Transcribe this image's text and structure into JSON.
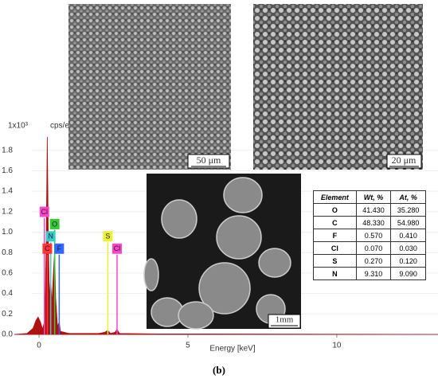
{
  "chart_data": {
    "type": "area",
    "y_unit_label": "1x10³",
    "y_label": "cps/eV",
    "x_label": "Energy [keV]",
    "xlim": [
      -0.83,
      13.4
    ],
    "xticks": [
      0,
      5,
      10
    ],
    "ylim": [
      0,
      1.93
    ],
    "yticks": [
      {
        "value": 0,
        "label": "0.0"
      },
      {
        "value": 0.2,
        "label": "0.2"
      },
      {
        "value": 0.4,
        "label": "0.4"
      },
      {
        "value": 0.6,
        "label": "0.6"
      },
      {
        "value": 0.8,
        "label": "0.8"
      },
      {
        "value": 1,
        "label": "1.0"
      },
      {
        "value": 1.2,
        "label": "1.2"
      },
      {
        "value": 1.4,
        "label": "1.4"
      },
      {
        "value": 1.6,
        "label": "1.6"
      },
      {
        "value": 1.8,
        "label": "1.8"
      }
    ],
    "grid": true,
    "series": [
      {
        "color": "#b01010",
        "x": [
          -0.83,
          -0.4,
          -0.2,
          -0.1,
          -0.03,
          0.05,
          0.12,
          0.2,
          0.24,
          0.277,
          0.31,
          0.35,
          0.392,
          0.43,
          0.5,
          0.525,
          0.56,
          0.62,
          0.677,
          0.72,
          1.0,
          2.0,
          2.2,
          2.31,
          2.4,
          2.55,
          2.62,
          2.7,
          4,
          13.4
        ],
        "values": [
          0,
          0.01,
          0.06,
          0.14,
          0.17,
          0.12,
          0.05,
          0.15,
          0.9,
          1.93,
          1.0,
          0.35,
          0.55,
          0.3,
          0.7,
          0.8,
          0.35,
          0.08,
          0.12,
          0.03,
          0.01,
          0.01,
          0.02,
          0.04,
          0.01,
          0.02,
          0.05,
          0.01,
          0.005,
          0
        ]
      }
    ],
    "markers": [
      {
        "label": "Cl",
        "energy": 0.18,
        "height": 1.14,
        "color": "#ff44cc"
      },
      {
        "label": "O",
        "energy": 0.525,
        "height": 1.02,
        "color": "#33cc33"
      },
      {
        "label": "N",
        "energy": 0.392,
        "height": 0.9,
        "color": "#33cccc"
      },
      {
        "label": "C",
        "energy": 0.277,
        "height": 0.78,
        "color": "#ff3333"
      },
      {
        "label": "F",
        "energy": 0.677,
        "height": 0.78,
        "color": "#3366ff"
      },
      {
        "label": "S",
        "energy": 2.31,
        "height": 0.9,
        "color": "#eeee33"
      },
      {
        "label": "Cl",
        "energy": 2.62,
        "height": 0.78,
        "color": "#ff44cc"
      }
    ]
  },
  "images": {
    "top_left_scale": "50 μm",
    "top_right_scale": "20 μm",
    "bottom_scale": "1mm"
  },
  "table": {
    "header": [
      "Element",
      "Wt, %",
      "At, %"
    ],
    "rows": [
      [
        "O",
        "41.430",
        "35.280"
      ],
      [
        "C",
        "48.330",
        "54.980"
      ],
      [
        "F",
        "0.570",
        "0.410"
      ],
      [
        "Cl",
        "0.070",
        "0.030"
      ],
      [
        "S",
        "0.270",
        "0.120"
      ],
      [
        "N",
        "9.310",
        "9.090"
      ]
    ]
  },
  "caption": "(b)"
}
